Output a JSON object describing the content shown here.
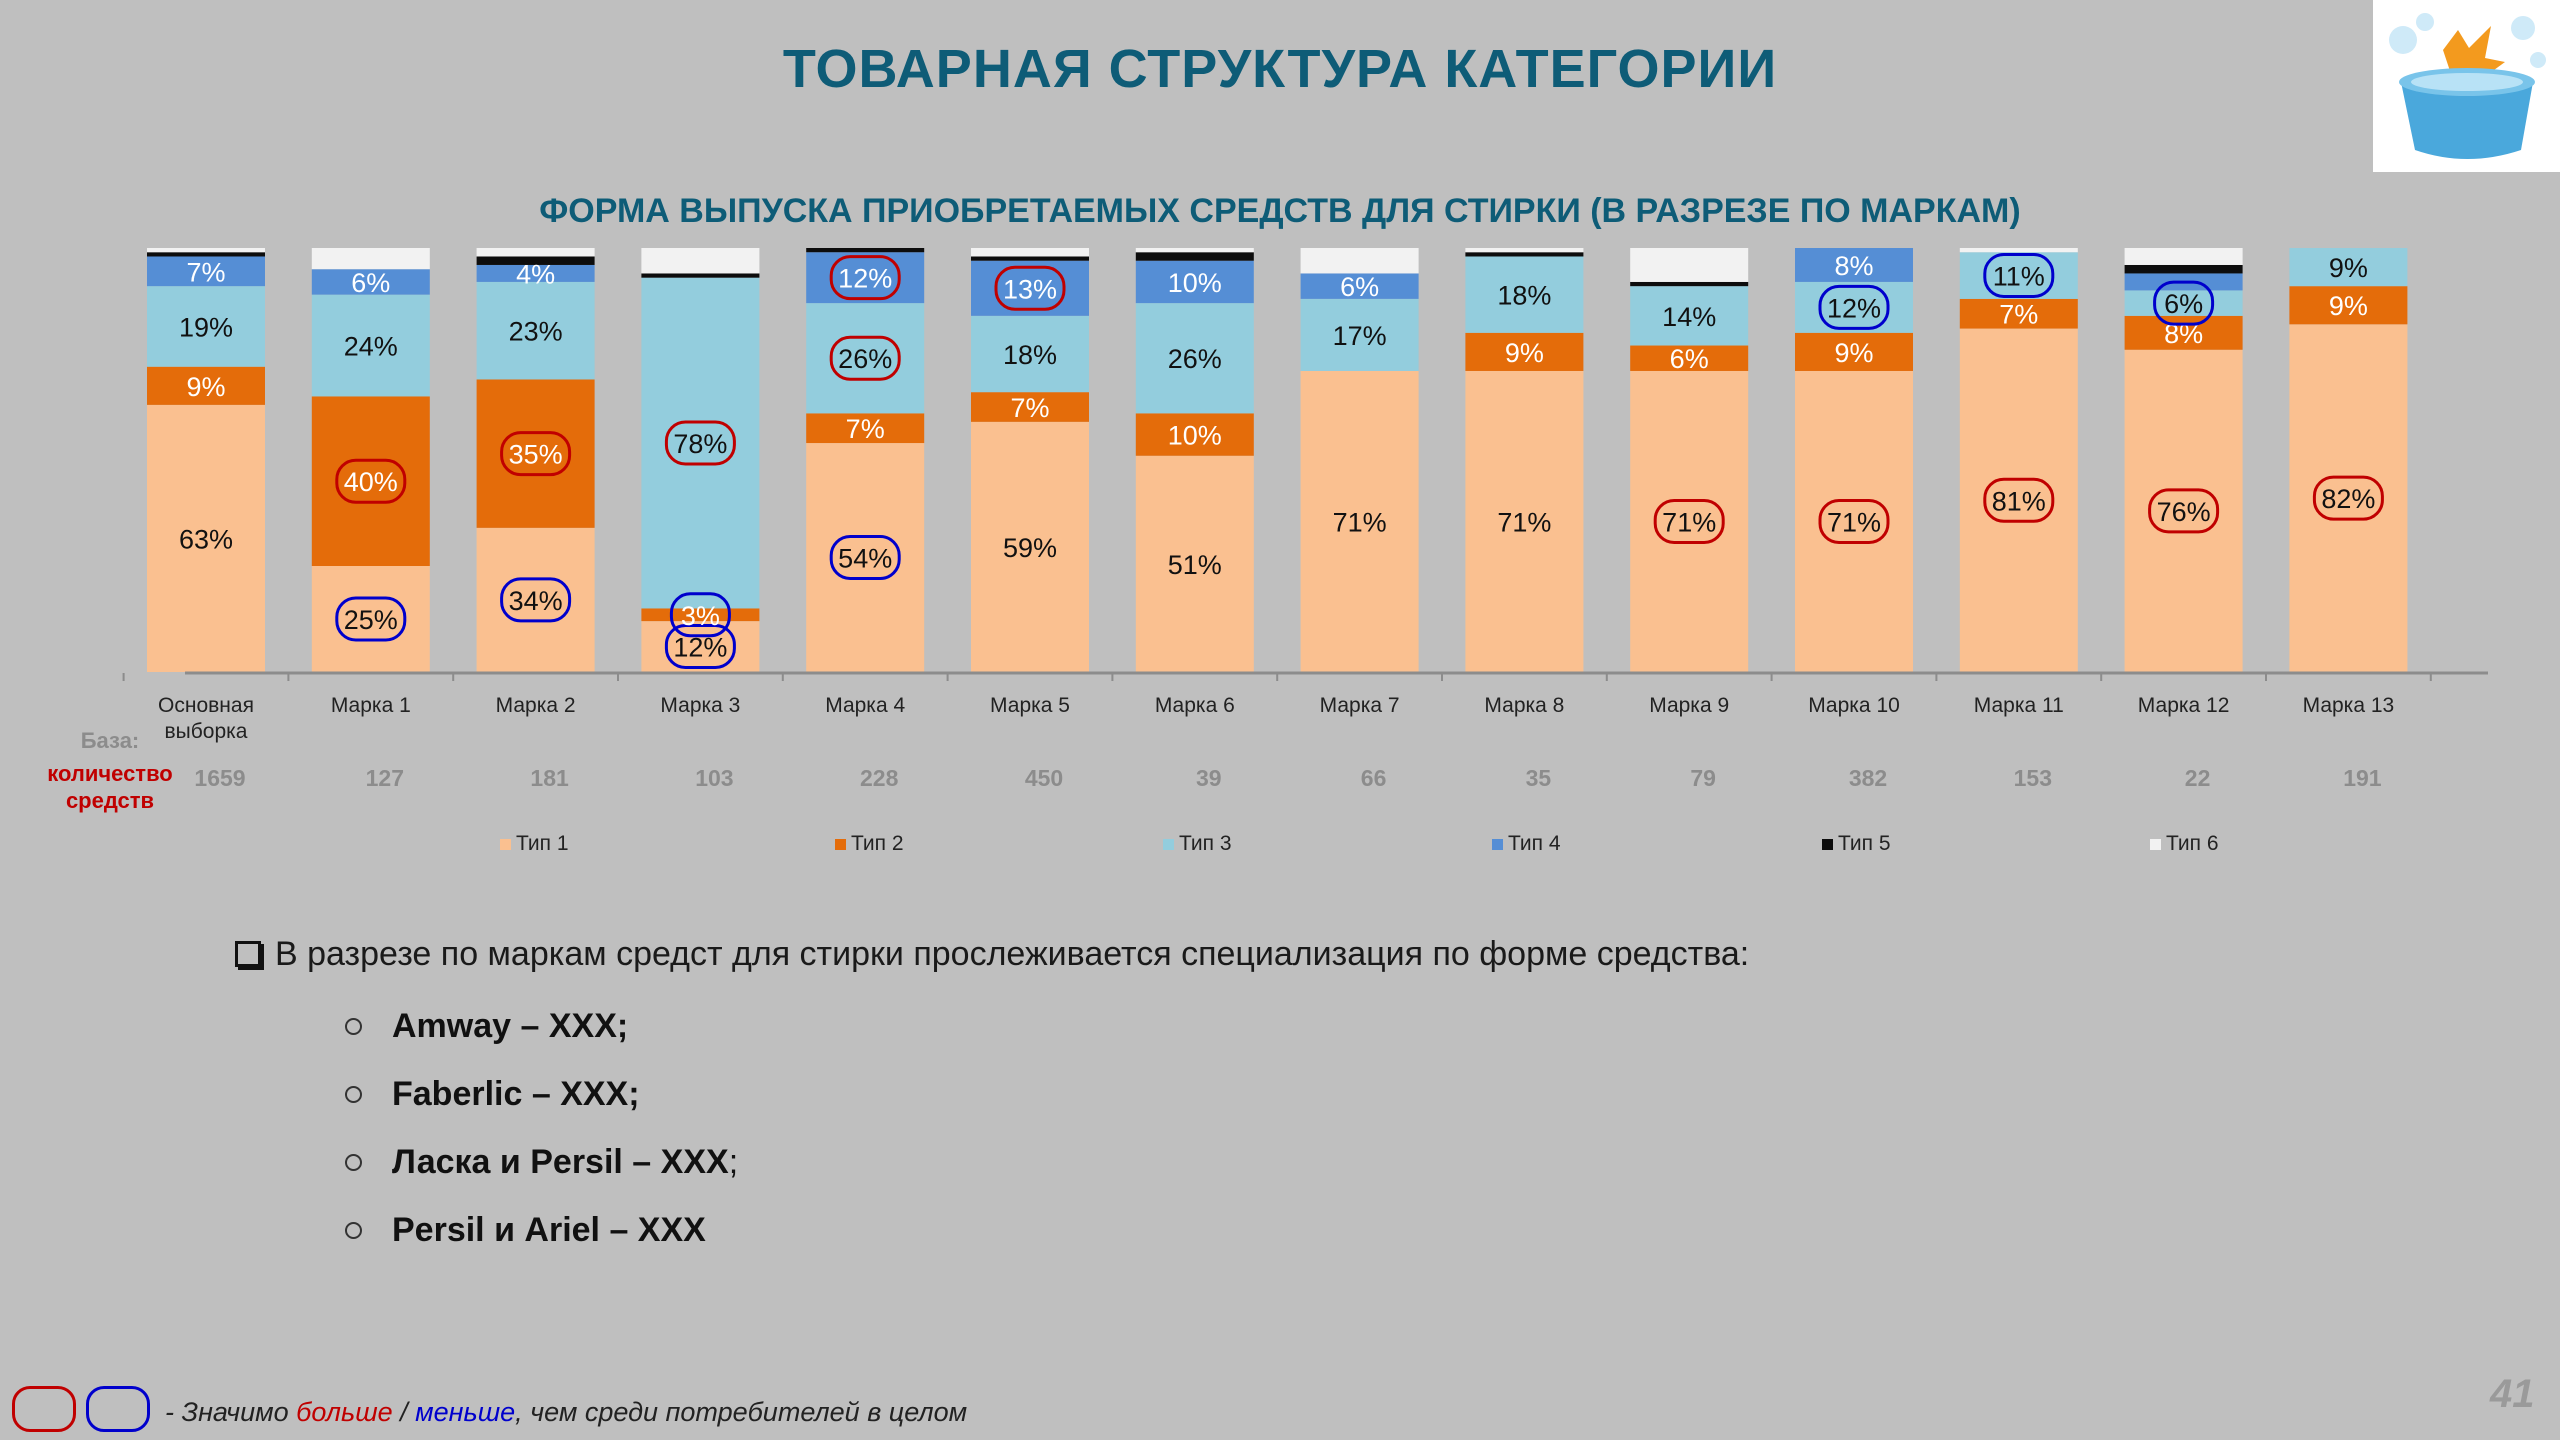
{
  "title": "ТОВАРНАЯ СТРУКТУРА КАТЕГОРИИ",
  "colors": {
    "type1": "#fac090",
    "type2": "#e46c0a",
    "type3": "#93cddd",
    "type4": "#558ed5",
    "type5": "#0d0d0d",
    "type6": "#f2f2f2",
    "higher": "#c00000",
    "lower": "#0000cc",
    "title": "#0e5c77"
  },
  "base": {
    "label": "База:",
    "desc": "количество средств"
  },
  "chart_data": {
    "type": "bar",
    "stacked": true,
    "title": "ФОРМА ВЫПУСКА ПРИОБРЕТАЕМЫХ  СРЕДСТВ ДЛЯ СТИРКИ (В РАЗРЕЗЕ ПО МАРКАМ)",
    "categories": [
      "Основная выборка",
      "Марка 1",
      "Марка 2",
      "Марка 3",
      "Марка 4",
      "Марка 5",
      "Марка 6",
      "Марка 7",
      "Марка 8",
      "Марка 9",
      "Марка 10",
      "Марка 11",
      "Марка 12",
      "Марка 13"
    ],
    "base_counts": [
      "1659",
      "127",
      "181",
      "103",
      "228",
      "450",
      "39",
      "66",
      "35",
      "79",
      "382",
      "153",
      "22",
      "191"
    ],
    "ylim": [
      0,
      100
    ],
    "legend_position": "bottom",
    "series": [
      {
        "name": "Тип 1",
        "values": [
          63,
          25,
          34,
          12,
          54,
          59,
          51,
          71,
          71,
          71,
          71,
          81,
          76,
          82
        ]
      },
      {
        "name": "Тип 2",
        "values": [
          9,
          40,
          35,
          3,
          7,
          7,
          10,
          0,
          9,
          6,
          9,
          7,
          8,
          9
        ]
      },
      {
        "name": "Тип 3",
        "values": [
          19,
          24,
          23,
          78,
          26,
          18,
          26,
          17,
          18,
          14,
          12,
          11,
          6,
          9
        ]
      },
      {
        "name": "Тип 4",
        "values": [
          7,
          6,
          4,
          0,
          12,
          13,
          10,
          6,
          0,
          0,
          8,
          0,
          4,
          0
        ]
      },
      {
        "name": "Тип 5",
        "values": [
          1,
          0,
          2,
          1,
          1,
          1,
          2,
          0,
          1,
          1,
          0,
          0,
          2,
          0
        ]
      },
      {
        "name": "Тип 6",
        "values": [
          1,
          5,
          2,
          6,
          0,
          2,
          1,
          6,
          1,
          8,
          0,
          1,
          4,
          0
        ]
      }
    ],
    "data_labels": [
      {
        "bar": 0,
        "series": 0,
        "text": "63%"
      },
      {
        "bar": 0,
        "series": 1,
        "text": "9%"
      },
      {
        "bar": 0,
        "series": 2,
        "text": "19%"
      },
      {
        "bar": 0,
        "series": 3,
        "text": "7%"
      },
      {
        "bar": 1,
        "series": 0,
        "text": "25%",
        "mark": "lower"
      },
      {
        "bar": 1,
        "series": 1,
        "text": "40%",
        "mark": "higher"
      },
      {
        "bar": 1,
        "series": 2,
        "text": "24%"
      },
      {
        "bar": 1,
        "series": 3,
        "text": "6%"
      },
      {
        "bar": 2,
        "series": 0,
        "text": "34%",
        "mark": "lower"
      },
      {
        "bar": 2,
        "series": 1,
        "text": "35%",
        "mark": "higher"
      },
      {
        "bar": 2,
        "series": 2,
        "text": "23%"
      },
      {
        "bar": 2,
        "series": 3,
        "text": "4%"
      },
      {
        "bar": 3,
        "series": 0,
        "text": "12%",
        "mark": "lower"
      },
      {
        "bar": 3,
        "series": 1,
        "text": "3%",
        "mark": "lower"
      },
      {
        "bar": 3,
        "series": 2,
        "text": "78%",
        "mark": "higher"
      },
      {
        "bar": 4,
        "series": 0,
        "text": "54%",
        "mark": "lower"
      },
      {
        "bar": 4,
        "series": 1,
        "text": "7%"
      },
      {
        "bar": 4,
        "series": 2,
        "text": "26%",
        "mark": "higher"
      },
      {
        "bar": 4,
        "series": 3,
        "text": "12%",
        "mark": "higher"
      },
      {
        "bar": 5,
        "series": 0,
        "text": "59%"
      },
      {
        "bar": 5,
        "series": 1,
        "text": "7%"
      },
      {
        "bar": 5,
        "series": 2,
        "text": "18%"
      },
      {
        "bar": 5,
        "series": 3,
        "text": "13%",
        "mark": "higher"
      },
      {
        "bar": 6,
        "series": 0,
        "text": "51%"
      },
      {
        "bar": 6,
        "series": 1,
        "text": "10%"
      },
      {
        "bar": 6,
        "series": 2,
        "text": "26%"
      },
      {
        "bar": 6,
        "series": 3,
        "text": "10%"
      },
      {
        "bar": 7,
        "series": 0,
        "text": "71%"
      },
      {
        "bar": 7,
        "series": 2,
        "text": "17%"
      },
      {
        "bar": 7,
        "series": 3,
        "text": "6%"
      },
      {
        "bar": 8,
        "series": 0,
        "text": "71%"
      },
      {
        "bar": 8,
        "series": 1,
        "text": "9%"
      },
      {
        "bar": 8,
        "series": 2,
        "text": "18%"
      },
      {
        "bar": 9,
        "series": 0,
        "text": "71%",
        "mark": "higher"
      },
      {
        "bar": 9,
        "series": 1,
        "text": "6%"
      },
      {
        "bar": 9,
        "series": 2,
        "text": "14%"
      },
      {
        "bar": 10,
        "series": 0,
        "text": "71%",
        "mark": "higher"
      },
      {
        "bar": 10,
        "series": 1,
        "text": "9%"
      },
      {
        "bar": 10,
        "series": 2,
        "text": "12%",
        "mark": "lower"
      },
      {
        "bar": 10,
        "series": 3,
        "text": "8%"
      },
      {
        "bar": 11,
        "series": 0,
        "text": "81%",
        "mark": "higher"
      },
      {
        "bar": 11,
        "series": 1,
        "text": "7%"
      },
      {
        "bar": 11,
        "series": 2,
        "text": "11%",
        "mark": "lower"
      },
      {
        "bar": 12,
        "series": 0,
        "text": "76%",
        "mark": "higher"
      },
      {
        "bar": 12,
        "series": 1,
        "text": "8%"
      },
      {
        "bar": 12,
        "series": 2,
        "text": "6%",
        "mark": "lower"
      },
      {
        "bar": 13,
        "series": 0,
        "text": "82%",
        "mark": "higher"
      },
      {
        "bar": 13,
        "series": 1,
        "text": "9%"
      },
      {
        "bar": 13,
        "series": 2,
        "text": "9%"
      }
    ]
  },
  "findings": {
    "header": "В разрезе по маркам средст для стирки прослеживается специализация по форме средства:",
    "items": [
      {
        "bold": "Amway – XXX;",
        "rest": ""
      },
      {
        "bold": "Faberlic – XXX;",
        "rest": ""
      },
      {
        "bold": "Ласка и Persil – XXX",
        "rest": ";"
      },
      {
        "bold": "Persil и Ariel – XXX",
        "rest": ""
      }
    ]
  },
  "footnote": {
    "prefix": "- Значимо ",
    "more": "больше",
    "sep": " / ",
    "less": "меньше",
    "suffix": ", чем среди потребителей в целом"
  },
  "page_number": "41"
}
